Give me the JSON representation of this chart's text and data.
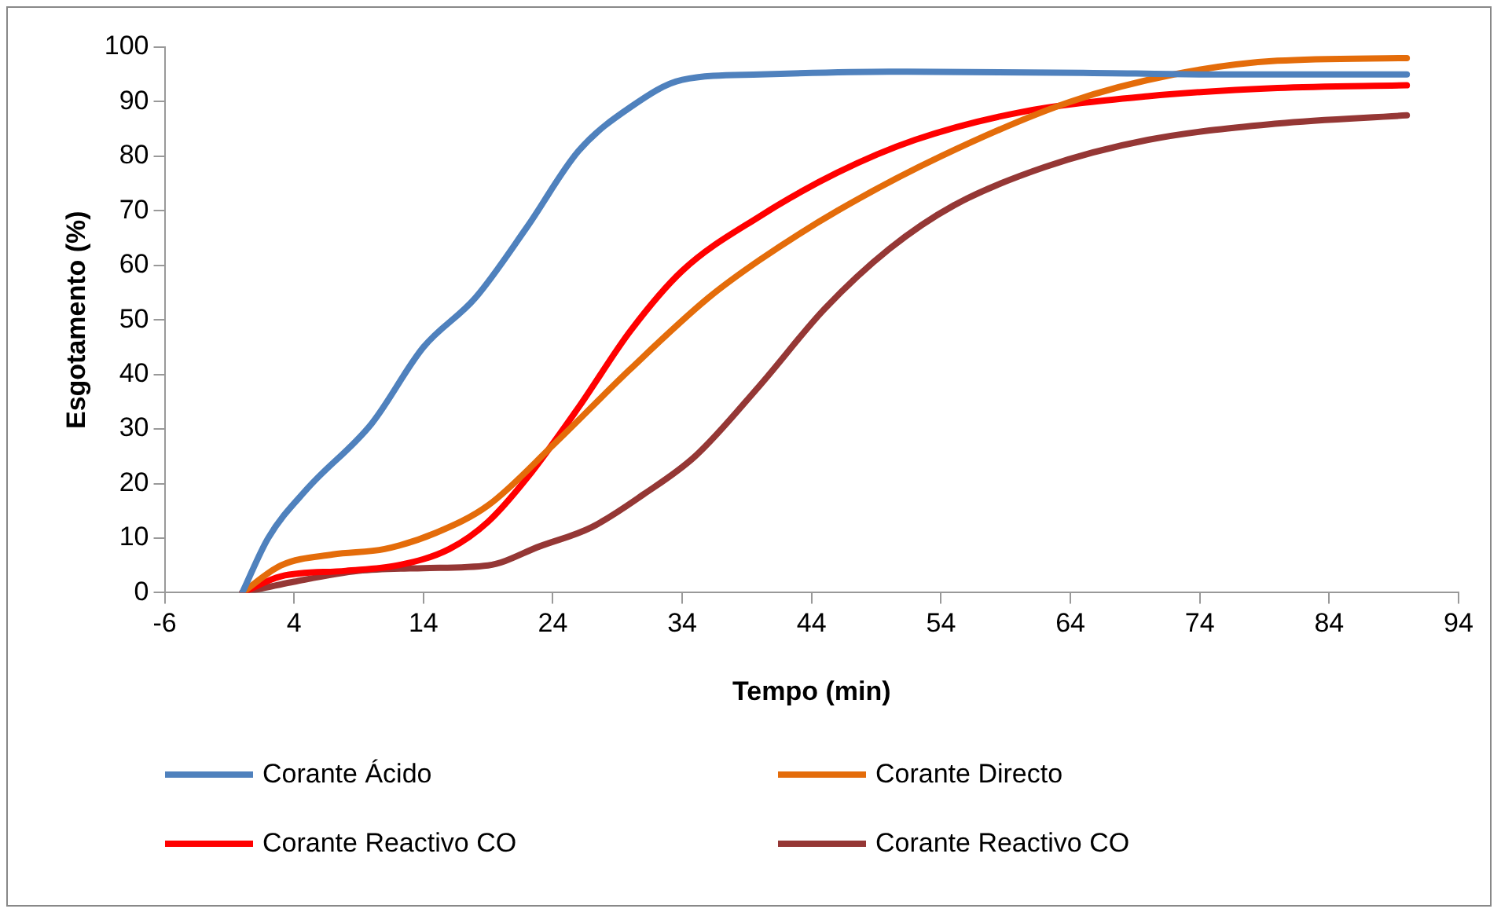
{
  "chart_data": {
    "type": "line",
    "xlabel": "Tempo (min)",
    "ylabel": "Esgotamento (%)",
    "xlim": [
      -6,
      94
    ],
    "xticks": [
      -6,
      4,
      14,
      24,
      34,
      44,
      54,
      64,
      74,
      84,
      94
    ],
    "ylim": [
      0,
      100
    ],
    "yticks": [
      0,
      10,
      20,
      30,
      40,
      50,
      60,
      70,
      80,
      90,
      100
    ],
    "grid": false,
    "legend": "bottom",
    "marker": "none",
    "line_style": "solid",
    "series": [
      {
        "name": "Corante Ácido",
        "color": "#4f81bd",
        "x": [
          0,
          2,
          5,
          10,
          14,
          18,
          22,
          26,
          30,
          34,
          40,
          50,
          65,
          75,
          90
        ],
        "values": [
          0,
          10,
          19,
          31,
          45,
          54,
          67,
          81,
          89,
          94,
          95,
          95.5,
          95.3,
          95,
          95
        ]
      },
      {
        "name": "Corante Directo",
        "color": "#e46c0a",
        "x": [
          0,
          3,
          7,
          11,
          15,
          19,
          24,
          30,
          36,
          40,
          46,
          54,
          64,
          72,
          80,
          90
        ],
        "values": [
          0,
          5,
          7,
          8,
          11,
          16,
          27,
          41,
          54,
          61,
          70,
          80,
          90,
          95,
          97.5,
          98
        ]
      },
      {
        "name": "Corante Reactivo CO",
        "color": "#ff0000",
        "x": [
          0,
          3,
          8,
          12,
          16,
          19,
          22,
          26,
          30,
          34,
          40,
          46,
          52,
          60,
          70,
          80,
          90
        ],
        "values": [
          0,
          3,
          4,
          5,
          8,
          13,
          21,
          34,
          48,
          59,
          69,
          77,
          83,
          88,
          91,
          92.5,
          93
        ]
      },
      {
        "name": "Corante Reactivo CO",
        "color": "#953735",
        "x": [
          0,
          4,
          9,
          14,
          19,
          23,
          27,
          31,
          35,
          40,
          45,
          50,
          55,
          62,
          70,
          80,
          90
        ],
        "values": [
          0,
          2,
          4,
          4.5,
          5,
          8.5,
          12,
          18,
          25,
          38,
          52,
          63,
          71,
          78,
          83,
          86,
          87.5
        ]
      }
    ]
  }
}
